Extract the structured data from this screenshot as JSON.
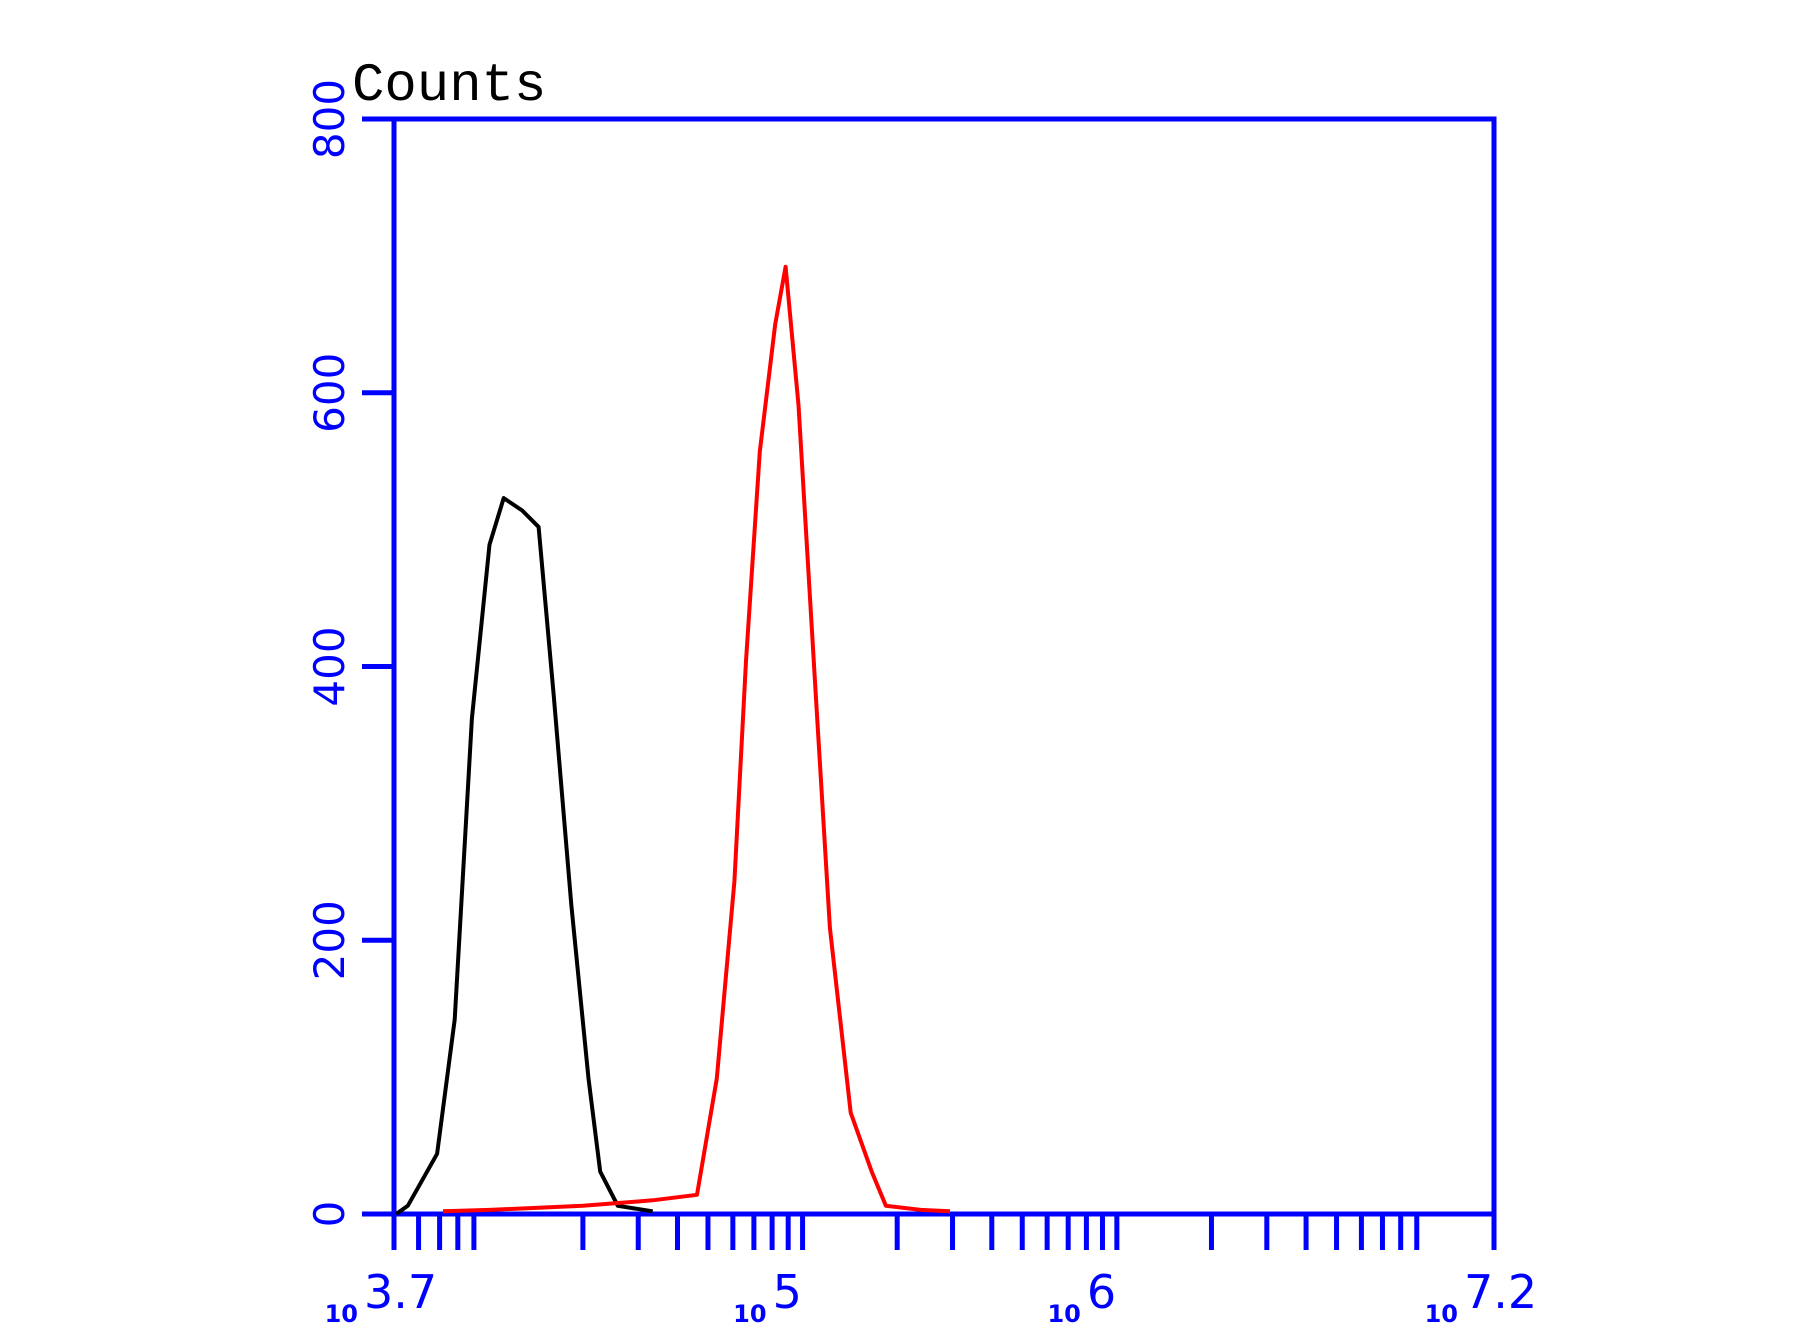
{
  "chart_data": {
    "type": "line",
    "y_label": "Counts",
    "x_tick_base": "10",
    "xscale": "log10",
    "xlim": [
      3.7,
      7.2
    ],
    "xticks": [
      3.7,
      5,
      6,
      7.2
    ],
    "ylim": [
      0,
      800
    ],
    "yticks": [
      0,
      200,
      400,
      600,
      800
    ],
    "axis_color": "#0000ff",
    "series": [
      {
        "color": "#000000",
        "x": [
          3.707,
          3.744,
          3.837,
          3.893,
          3.948,
          4.004,
          4.049,
          4.108,
          4.16,
          4.208,
          4.264,
          4.319,
          4.356,
          4.412,
          4.523
        ],
        "values": [
          0,
          6,
          44,
          142,
          362,
          489,
          523,
          514,
          502,
          379,
          226,
          99,
          31,
          6,
          2
        ]
      },
      {
        "color": "#ff0000",
        "x": [
          3.856,
          4.004,
          4.301,
          4.523,
          4.664,
          4.727,
          4.783,
          4.82,
          4.864,
          4.913,
          4.946,
          4.987,
          5.042,
          5.087,
          5.153,
          5.22,
          5.265,
          5.376,
          5.469
        ],
        "values": [
          2,
          3,
          6,
          10,
          14,
          99,
          243,
          404,
          557,
          650,
          692,
          591,
          379,
          209,
          74,
          31,
          6,
          3,
          2
        ]
      }
    ]
  }
}
